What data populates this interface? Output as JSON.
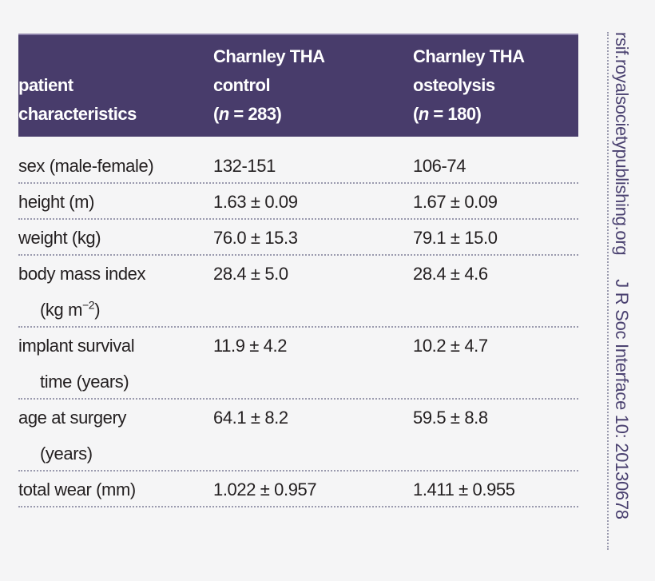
{
  "table": {
    "header": {
      "col0": [
        "patient",
        "characteristics"
      ],
      "col1": [
        "Charnley THA",
        "control",
        "(n = 283)"
      ],
      "col1_n_label": "n",
      "col1_n_value": " = 283)",
      "col2": [
        "Charnley THA",
        "osteolysis",
        "(n = 180)"
      ],
      "col2_n_label": "n",
      "col2_n_value": " = 180)"
    },
    "rows": [
      {
        "label": "sex (male-female)",
        "label_cont": "",
        "control": "132-151",
        "osteolysis": "106-74"
      },
      {
        "label": "height (m)",
        "label_cont": "",
        "control": "1.63 ± 0.09",
        "osteolysis": "1.67 ± 0.09"
      },
      {
        "label": "weight (kg)",
        "label_cont": "",
        "control": "76.0 ± 15.3",
        "osteolysis": "79.1 ± 15.0"
      },
      {
        "label": "body mass index",
        "label_cont_pre": "(kg m",
        "label_cont_sup": "−2",
        "label_cont_post": ")",
        "control": "28.4 ± 5.0",
        "osteolysis": "28.4 ± 4.6"
      },
      {
        "label": "implant survival",
        "label_cont": "time (years)",
        "control": "11.9 ± 4.2",
        "osteolysis": "10.2 ± 4.7"
      },
      {
        "label": "age at surgery",
        "label_cont": "(years)",
        "control": "64.1 ± 8.2",
        "osteolysis": "59.5 ± 8.8"
      },
      {
        "label": "total wear (mm)",
        "label_cont": "",
        "control": "1.022 ± 0.957",
        "osteolysis": "1.411 ± 0.955"
      }
    ]
  },
  "sidebar": {
    "url": "rsif.royalsocietypublishing.org",
    "citation": "J R Soc Interface 10: 20130678"
  },
  "colors": {
    "header_bg": "#483c6b",
    "journal_text": "#4a4170"
  }
}
